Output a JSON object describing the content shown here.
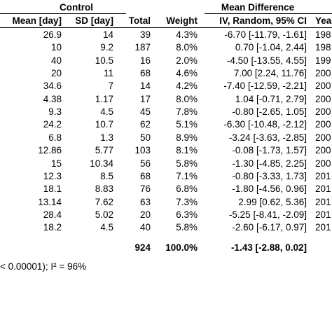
{
  "header": {
    "group_control": "Control",
    "group_md": "Mean Difference",
    "col_mean": "Mean [day]",
    "col_sd": "SD [day]",
    "col_total": "Total",
    "col_weight": "Weight",
    "col_ci": "IV, Random, 95% CI",
    "col_year": "Year"
  },
  "rows": [
    {
      "mean": "26.9",
      "sd": "14",
      "total": "39",
      "weight": "4.3%",
      "ci": "-6.70 [-11.79, -1.61]",
      "year": "198"
    },
    {
      "mean": "10",
      "sd": "9.2",
      "total": "187",
      "weight": "8.0%",
      "ci": "0.70 [-1.04, 2.44]",
      "year": "198"
    },
    {
      "mean": "40",
      "sd": "10.5",
      "total": "16",
      "weight": "2.0%",
      "ci": "-4.50 [-13.55, 4.55]",
      "year": "199"
    },
    {
      "mean": "20",
      "sd": "11",
      "total": "68",
      "weight": "4.6%",
      "ci": "7.00 [2.24, 11.76]",
      "year": "200"
    },
    {
      "mean": "34.6",
      "sd": "7",
      "total": "14",
      "weight": "4.2%",
      "ci": "-7.40 [-12.59, -2.21]",
      "year": "200"
    },
    {
      "mean": "4.38",
      "sd": "1.17",
      "total": "17",
      "weight": "8.0%",
      "ci": "1.04 [-0.71, 2.79]",
      "year": "200"
    },
    {
      "mean": "9.3",
      "sd": "4.5",
      "total": "45",
      "weight": "7.8%",
      "ci": "-0.80 [-2.65, 1.05]",
      "year": "200"
    },
    {
      "mean": "24.2",
      "sd": "10.7",
      "total": "62",
      "weight": "5.1%",
      "ci": "-6.30 [-10.48, -2.12]",
      "year": "200"
    },
    {
      "mean": "6.8",
      "sd": "1.3",
      "total": "50",
      "weight": "8.9%",
      "ci": "-3.24 [-3.63, -2.85]",
      "year": "200"
    },
    {
      "mean": "12.86",
      "sd": "5.77",
      "total": "103",
      "weight": "8.1%",
      "ci": "-0.08 [-1.73, 1.57]",
      "year": "200"
    },
    {
      "mean": "15",
      "sd": "10.34",
      "total": "56",
      "weight": "5.8%",
      "ci": "-1.30 [-4.85, 2.25]",
      "year": "200"
    },
    {
      "mean": "12.3",
      "sd": "8.5",
      "total": "68",
      "weight": "7.1%",
      "ci": "-0.80 [-3.33, 1.73]",
      "year": "201"
    },
    {
      "mean": "18.1",
      "sd": "8.83",
      "total": "76",
      "weight": "6.8%",
      "ci": "-1.80 [-4.56, 0.96]",
      "year": "201"
    },
    {
      "mean": "13.14",
      "sd": "7.62",
      "total": "63",
      "weight": "7.3%",
      "ci": "2.99 [0.62, 5.36]",
      "year": "201"
    },
    {
      "mean": "28.4",
      "sd": "5.02",
      "total": "20",
      "weight": "6.3%",
      "ci": "-5.25 [-8.41, -2.09]",
      "year": "201"
    },
    {
      "mean": "18.2",
      "sd": "4.5",
      "total": "40",
      "weight": "5.8%",
      "ci": "-2.60 [-6.17, 0.97]",
      "year": "201"
    }
  ],
  "total_row": {
    "total": "924",
    "weight": "100.0%",
    "ci": "-1.43 [-2.88, 0.02]"
  },
  "heterogeneity": "< 0.00001); I² = 96%"
}
